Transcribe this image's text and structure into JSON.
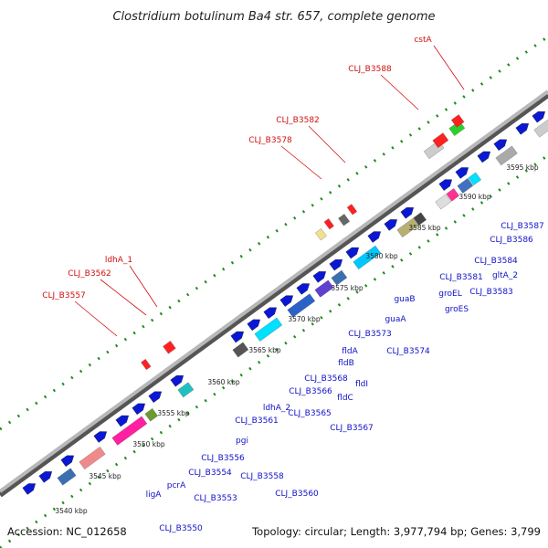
{
  "title": "Clostridium botulinum Ba4 str. 657, complete genome",
  "accession": "Accession: NC_012658",
  "summary": "Topology: circular; Length: 3,977,794 bp; Genes: 3,799",
  "colors": {
    "backbone": "#8c8c8c",
    "dots": "#1e8c1e",
    "gene_forward": "#0a18d6",
    "label_red": "#d01010",
    "label_blue": "#1010c8"
  },
  "scale_labels": [
    "3540 kbp",
    "3545 kbp",
    "3550 kbp",
    "3555 kbp",
    "3560 kbp",
    "3565 kbp",
    "3570 kbp",
    "3575 kbp",
    "3580 kbp",
    "3585 kbp",
    "3590 kbp",
    "3595 kbp"
  ],
  "top_labels": [
    "cstA",
    "CLJ_B3588",
    "CLJ_B3582",
    "CLJ_B3578",
    "ldhA_1",
    "CLJ_B3562",
    "CLJ_B3557"
  ],
  "bottom_labels": [
    "CLJ_B3587",
    "CLJ_B3586",
    "CLJ_B3584",
    "gltA_2",
    "CLJ_B3583",
    "CLJ_B3581",
    "groEL",
    "groES",
    "guaB",
    "guaA",
    "CLJ_B3574",
    "CLJ_B3573",
    "fldA",
    "fldB",
    "fldI",
    "fldC",
    "CLJ_B3568",
    "CLJ_B3566",
    "CLJ_B3567",
    "CLJ_B3565",
    "ldhA_2",
    "CLJ_B3561",
    "pgi",
    "CLJ_B3558",
    "CLJ_B3556",
    "CLJ_B3554",
    "CLJ_B3560",
    "CLJ_B3553",
    "pcrA",
    "ligA",
    "CLJ_B3550"
  ]
}
